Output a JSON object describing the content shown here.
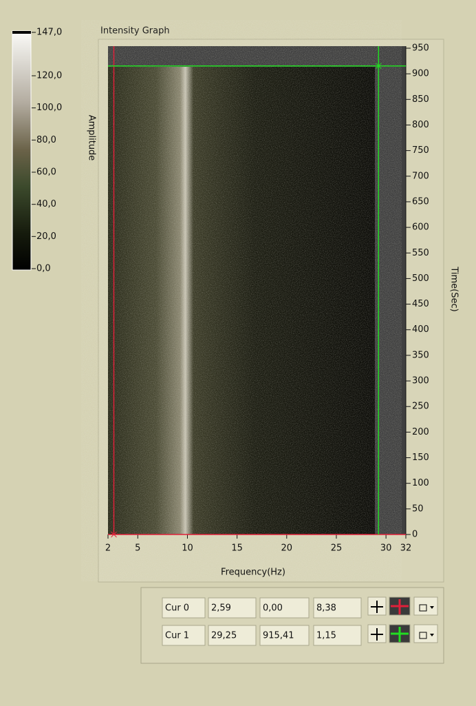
{
  "graph": {
    "title": "Intensity Graph",
    "x_label": "Frequency(Hz)",
    "y_label": "Time(Sec)",
    "z_label": "Amplitude",
    "xlim": [
      2,
      32
    ],
    "xticks": [
      2,
      5,
      10,
      15,
      20,
      25,
      30,
      32
    ],
    "ylim": [
      0,
      950
    ],
    "yticks": [
      0,
      50,
      100,
      150,
      200,
      250,
      300,
      350,
      400,
      450,
      500,
      550,
      600,
      650,
      700,
      750,
      800,
      850,
      900,
      950
    ],
    "zlim": [
      0,
      147
    ],
    "zticks": [
      {
        "value": 0,
        "label": "0,0"
      },
      {
        "value": 20,
        "label": "20,0"
      },
      {
        "value": 40,
        "label": "40,0"
      },
      {
        "value": 60,
        "label": "60,0"
      },
      {
        "value": 80,
        "label": "80,0"
      },
      {
        "value": 100,
        "label": "100,0"
      },
      {
        "value": 120,
        "label": "120,0"
      },
      {
        "value": 147,
        "label": "147,0"
      }
    ]
  },
  "cursors": [
    {
      "name": "Cur 0",
      "color": "#e0203a",
      "x": {
        "value": 2.59,
        "label": "2,59"
      },
      "y": {
        "value": 0,
        "label": "0,00"
      },
      "z": {
        "value": 8.38,
        "label": "8,38"
      }
    },
    {
      "name": "Cur 1",
      "color": "#22dd22",
      "x": {
        "value": 29.25,
        "label": "29,25"
      },
      "y": {
        "value": 915.41,
        "label": "915,41"
      },
      "z": {
        "value": 1.15,
        "label": "1,15"
      }
    }
  ]
}
